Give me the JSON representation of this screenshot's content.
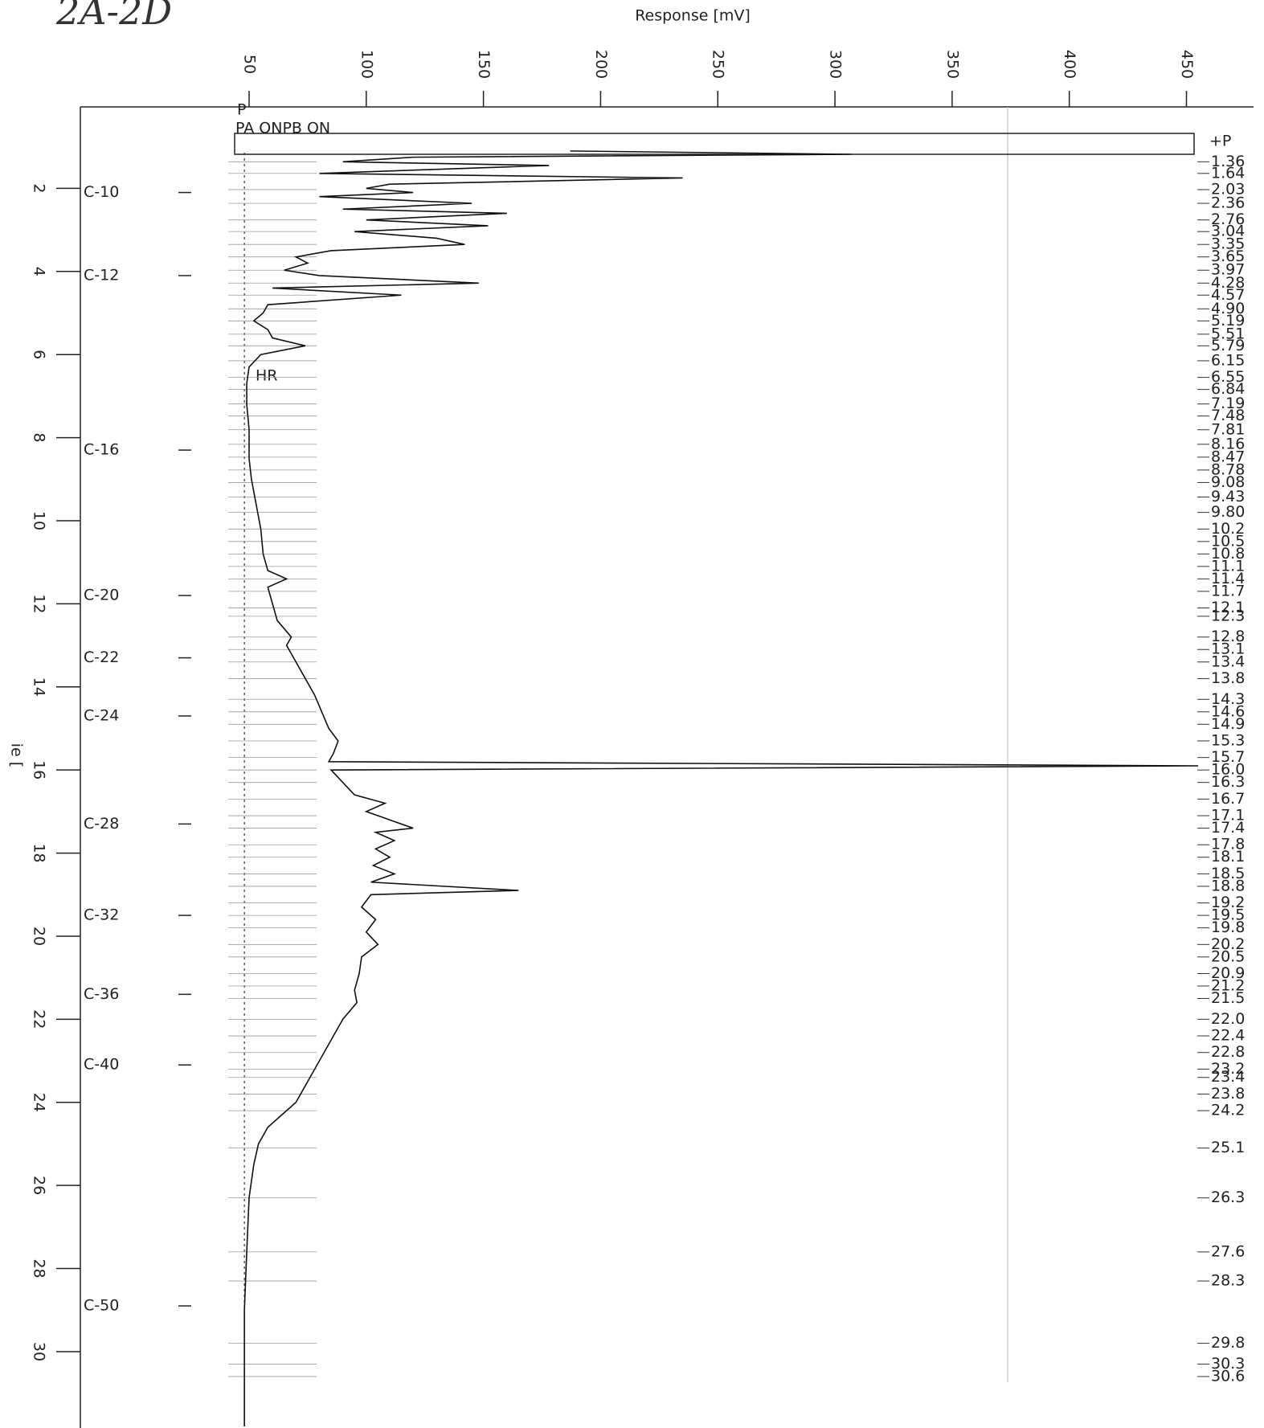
{
  "chart_data": {
    "type": "line",
    "note": "2A-2D",
    "xlabel": "Response [mV]",
    "ylabel": "ie [",
    "annotations": {
      "p": "P",
      "pa_pb": "PA ONPB ON",
      "hr": "HR",
      "plus_p": "+P"
    },
    "xlim": [
      -22,
      468
    ],
    "xticks": [
      50,
      100,
      150,
      200,
      250,
      300,
      350,
      400,
      450
    ],
    "ylim": [
      0,
      31.8
    ],
    "yticks": [
      2,
      4,
      6,
      8,
      10,
      12,
      14,
      16,
      18,
      20,
      22,
      24,
      26,
      28,
      30
    ],
    "color": "#111111",
    "baseline": 48,
    "x": [
      1.1,
      1.18,
      1.25,
      1.36,
      1.45,
      1.64,
      1.75,
      1.9,
      2.0,
      2.1,
      2.2,
      2.36,
      2.5,
      2.6,
      2.76,
      2.9,
      3.04,
      3.2,
      3.35,
      3.5,
      3.65,
      3.8,
      3.97,
      4.1,
      4.28,
      4.4,
      4.57,
      4.8,
      5.0,
      5.19,
      5.4,
      5.6,
      5.79,
      6.0,
      6.3,
      6.7,
      7.2,
      7.8,
      8.5,
      9.0,
      9.6,
      10.2,
      10.8,
      11.2,
      11.4,
      11.6,
      12.0,
      12.4,
      12.8,
      13.0,
      13.4,
      13.8,
      14.2,
      14.6,
      15.0,
      15.3,
      15.6,
      15.8,
      15.9,
      16.0,
      16.3,
      16.6,
      16.8,
      17.0,
      17.2,
      17.4,
      17.5,
      17.7,
      17.9,
      18.1,
      18.3,
      18.5,
      18.7,
      18.9,
      19.0,
      19.3,
      19.6,
      19.9,
      20.2,
      20.5,
      20.9,
      21.3,
      21.6,
      22.0,
      22.4,
      22.8,
      23.2,
      23.6,
      24.0,
      24.3,
      24.6,
      25.0,
      25.5,
      26.3,
      27.6,
      29.0,
      30.5,
      31.8
    ],
    "values": [
      187,
      307,
      120,
      90,
      178,
      80,
      235,
      110,
      100,
      120,
      80,
      145,
      90,
      160,
      100,
      152,
      95,
      130,
      142,
      85,
      70,
      75,
      65,
      80,
      148,
      60,
      115,
      58,
      56,
      52,
      58,
      60,
      74,
      55,
      50,
      49,
      49,
      50,
      50,
      51,
      53,
      55,
      56,
      58,
      66,
      58,
      60,
      62,
      68,
      66,
      70,
      74,
      78,
      81,
      84,
      88,
      86,
      84,
      455,
      85,
      90,
      95,
      108,
      100,
      110,
      120,
      104,
      112,
      104,
      110,
      103,
      112,
      102,
      165,
      102,
      98,
      104,
      100,
      105,
      98,
      97,
      95,
      96,
      90,
      86,
      82,
      78,
      74,
      70,
      64,
      58,
      54,
      52,
      50,
      49,
      48,
      48,
      48
    ],
    "markers": [
      {
        "value": 2.1,
        "label": "C-10"
      },
      {
        "value": 4.1,
        "label": "C-12"
      },
      {
        "value": 8.3,
        "label": "C-16"
      },
      {
        "value": 11.8,
        "label": "C-20"
      },
      {
        "value": 13.3,
        "label": "C-22"
      },
      {
        "value": 14.7,
        "label": "C-24"
      },
      {
        "value": 17.3,
        "label": "C-28"
      },
      {
        "value": 19.5,
        "label": "C-32"
      },
      {
        "value": 21.4,
        "label": "C-36"
      },
      {
        "value": 23.1,
        "label": "C-40"
      },
      {
        "value": 28.9,
        "label": "C-50"
      }
    ],
    "peak_labels": [
      {
        "value": 1.36,
        "label": "1.36"
      },
      {
        "value": 1.64,
        "label": "1.64"
      },
      {
        "value": 2.03,
        "label": "2.03"
      },
      {
        "value": 2.36,
        "label": "2.36"
      },
      {
        "value": 2.76,
        "label": "2.76"
      },
      {
        "value": 3.04,
        "label": "3.04"
      },
      {
        "value": 3.35,
        "label": "3.35"
      },
      {
        "value": 3.65,
        "label": "3.65"
      },
      {
        "value": 3.97,
        "label": "3.97"
      },
      {
        "value": 4.28,
        "label": "4.28"
      },
      {
        "value": 4.57,
        "label": "4.57"
      },
      {
        "value": 4.9,
        "label": "4.90"
      },
      {
        "value": 5.19,
        "label": "5.19"
      },
      {
        "value": 5.51,
        "label": "5.51"
      },
      {
        "value": 5.79,
        "label": "5.79"
      },
      {
        "value": 6.15,
        "label": "6.15"
      },
      {
        "value": 6.55,
        "label": "6.55"
      },
      {
        "value": 6.84,
        "label": "6.84"
      },
      {
        "value": 7.19,
        "label": "7.19"
      },
      {
        "value": 7.48,
        "label": "7.48"
      },
      {
        "value": 7.81,
        "label": "7.81"
      },
      {
        "value": 8.16,
        "label": "8.16"
      },
      {
        "value": 8.47,
        "label": "8.47"
      },
      {
        "value": 8.78,
        "label": "8.78"
      },
      {
        "value": 9.08,
        "label": "9.08"
      },
      {
        "value": 9.43,
        "label": "9.43"
      },
      {
        "value": 9.8,
        "label": "9.80"
      },
      {
        "value": 10.2,
        "label": "10.2"
      },
      {
        "value": 10.5,
        "label": "10.5"
      },
      {
        "value": 10.8,
        "label": "10.8"
      },
      {
        "value": 11.1,
        "label": "11.1"
      },
      {
        "value": 11.4,
        "label": "11.4"
      },
      {
        "value": 11.7,
        "label": "11.7"
      },
      {
        "value": 12.1,
        "label": "12.1"
      },
      {
        "value": 12.3,
        "label": "12.3"
      },
      {
        "value": 12.8,
        "label": "12.8"
      },
      {
        "value": 13.1,
        "label": "13.1"
      },
      {
        "value": 13.4,
        "label": "13.4"
      },
      {
        "value": 13.8,
        "label": "13.8"
      },
      {
        "value": 14.3,
        "label": "14.3"
      },
      {
        "value": 14.6,
        "label": "14.6"
      },
      {
        "value": 14.9,
        "label": "14.9"
      },
      {
        "value": 15.3,
        "label": "15.3"
      },
      {
        "value": 15.7,
        "label": "15.7"
      },
      {
        "value": 16.0,
        "label": "16.0"
      },
      {
        "value": 16.3,
        "label": "16.3"
      },
      {
        "value": 16.7,
        "label": "16.7"
      },
      {
        "value": 17.1,
        "label": "17.1"
      },
      {
        "value": 17.4,
        "label": "17.4"
      },
      {
        "value": 17.8,
        "label": "17.8"
      },
      {
        "value": 18.1,
        "label": "18.1"
      },
      {
        "value": 18.5,
        "label": "18.5"
      },
      {
        "value": 18.8,
        "label": "18.8"
      },
      {
        "value": 19.2,
        "label": "19.2"
      },
      {
        "value": 19.5,
        "label": "19.5"
      },
      {
        "value": 19.8,
        "label": "19.8"
      },
      {
        "value": 20.2,
        "label": "20.2"
      },
      {
        "value": 20.5,
        "label": "20.5"
      },
      {
        "value": 20.9,
        "label": "20.9"
      },
      {
        "value": 21.2,
        "label": "21.2"
      },
      {
        "value": 21.5,
        "label": "21.5"
      },
      {
        "value": 22.0,
        "label": "22.0"
      },
      {
        "value": 22.4,
        "label": "22.4"
      },
      {
        "value": 22.8,
        "label": "22.8"
      },
      {
        "value": 23.2,
        "label": "23.2"
      },
      {
        "value": 23.4,
        "label": "23.4"
      },
      {
        "value": 23.8,
        "label": "23.8"
      },
      {
        "value": 24.2,
        "label": "24.2"
      },
      {
        "value": 25.1,
        "label": "25.1"
      },
      {
        "value": 26.3,
        "label": "26.3"
      },
      {
        "value": 27.6,
        "label": "27.6"
      },
      {
        "value": 28.3,
        "label": "28.3"
      },
      {
        "value": 29.8,
        "label": "29.8"
      },
      {
        "value": 30.3,
        "label": "30.3"
      },
      {
        "value": 30.6,
        "label": "30.6"
      }
    ]
  }
}
